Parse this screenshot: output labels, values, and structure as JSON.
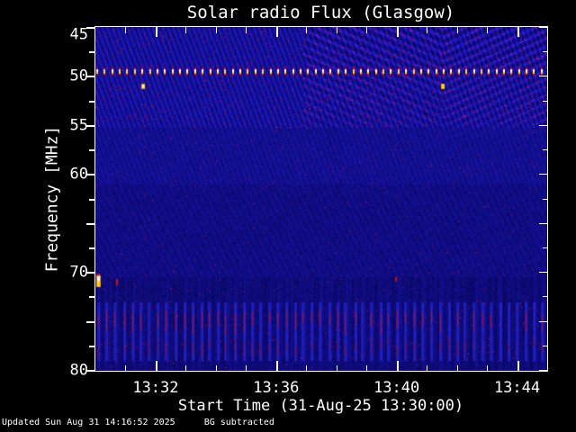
{
  "chart_data": {
    "type": "heatmap",
    "title": "Solar radio Flux (Glasgow)",
    "xlabel": "Start Time (31-Aug-25 13:30:00)",
    "ylabel": "Frequency [MHz]",
    "x_start": "13:30",
    "x_end": "13:45",
    "x_major_ticks": [
      "13:32",
      "13:36",
      "13:40",
      "13:44"
    ],
    "x_minor_interval_minutes": 1,
    "y_range": [
      45,
      80
    ],
    "y_axis_inverted": true,
    "y_tick_labels": [
      45,
      50,
      55,
      60,
      70,
      80
    ],
    "y_major_interval_mhz": 5,
    "y_minor_interval_mhz": 2.5,
    "palette": {
      "base_blue": "#0a0ab4",
      "dark_blue": "#000078",
      "bright_blue": "#2a2ae6",
      "speckle_red": "#c80014",
      "burst_yellow": "#ffe000",
      "burst_white": "#ffffff",
      "frame": "#ffffff",
      "background": "#000000"
    },
    "features": [
      {
        "kind": "dotted-interference-line",
        "frequency_mhz": 49.5,
        "time_range": [
          "13:30",
          "13:45"
        ],
        "color": "yellow-white dashes with red fringes",
        "dash_spacing_s": 15
      },
      {
        "kind": "point-burst",
        "frequency_mhz": 51.1,
        "time": "13:31:35",
        "color": "yellow"
      },
      {
        "kind": "point-burst",
        "frequency_mhz": 51.1,
        "time": "13:41:32",
        "color": "yellow"
      },
      {
        "kind": "bright-blob",
        "frequency_mhz": 70.8,
        "time": "13:30:05",
        "color": "white-yellow-orange"
      },
      {
        "kind": "red-dash",
        "frequency_mhz": 71.0,
        "time": "13:30:43",
        "color": "red"
      },
      {
        "kind": "red-dot",
        "frequency_mhz": 70.7,
        "time": "13:40:00",
        "color": "red"
      },
      {
        "kind": "striped-band",
        "frequency_range_mhz": [
          71.5,
          79.0
        ],
        "time_range": [
          "13:30",
          "13:45"
        ],
        "desc": "periodic vertical blue stripes with crimson cores, ~17 s spacing"
      },
      {
        "kind": "moire-chevrons",
        "frequency_range_mhz": [
          45,
          56
        ],
        "time_range": [
          "13:37",
          "13:45"
        ],
        "desc": "V-shaped interference fringes converging near 13:41:30"
      },
      {
        "kind": "diagonal-striping",
        "frequency_range_mhz": [
          45,
          55
        ],
        "time_range": [
          "13:30",
          "13:45"
        ],
        "desc": "fine diagonal blue texture with red speckles"
      }
    ],
    "background_note": "BG subtracted"
  },
  "footer": {
    "updated": "Updated Sun Aug 31 14:16:52 2025",
    "note": "BG subtracted"
  }
}
